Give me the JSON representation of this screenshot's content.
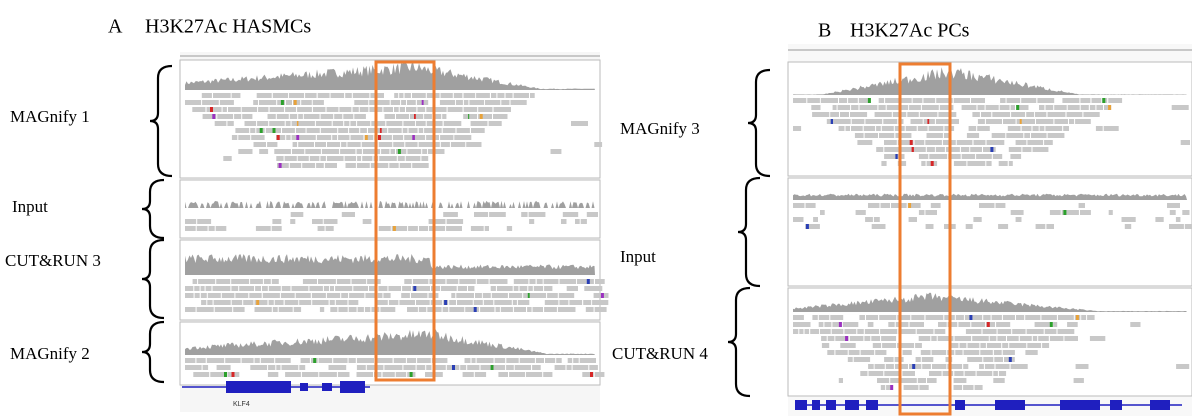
{
  "panels": [
    {
      "letter": "A",
      "title": "H3K27Ac HASMCs",
      "tracks": [
        "MAGnify 1",
        "Input",
        "CUT&RUN 3",
        "MAGnify 2"
      ],
      "gene": "KLF4"
    },
    {
      "letter": "B",
      "title": "H3K27Ac PCs",
      "tracks": [
        "MAGnify 3",
        "Input",
        "CUT&RUN 4"
      ]
    }
  ]
}
